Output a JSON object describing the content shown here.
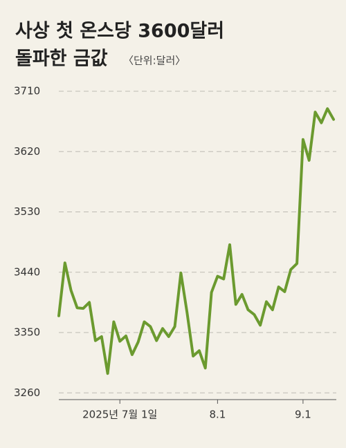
{
  "chart_data": {
    "type": "line",
    "title": "사상 첫 온스당 3600달러",
    "subtitle": "돌파한 금값",
    "unit": "〈단위:달러〉",
    "categories": [
      null,
      null,
      null,
      null,
      null,
      null,
      null,
      null,
      null,
      null,
      "2025년 7월 1일",
      null,
      null,
      null,
      null,
      null,
      null,
      null,
      null,
      null,
      null,
      null,
      null,
      null,
      null,
      null,
      "8.1",
      null,
      null,
      null,
      null,
      null,
      null,
      null,
      null,
      null,
      null,
      null,
      null,
      null,
      "9.1",
      null,
      null,
      null,
      null,
      null
    ],
    "values": [
      3375,
      3454,
      3413,
      3387,
      3386,
      3395,
      3338,
      3344,
      3289,
      3366,
      3337,
      3345,
      3317,
      3336,
      3366,
      3359,
      3338,
      3356,
      3344,
      3359,
      3439,
      3380,
      3315,
      3323,
      3297,
      3410,
      3434,
      3430,
      3481,
      3392,
      3407,
      3384,
      3377,
      3361,
      3396,
      3384,
      3418,
      3411,
      3444,
      3453,
      3638,
      3607,
      3679,
      3663,
      3684,
      3668
    ],
    "color": "#6b9a2f",
    "ylim": [
      3250,
      3710
    ],
    "yticks": [
      3260,
      3350,
      3440,
      3530,
      3620,
      3710
    ],
    "grid": true
  }
}
